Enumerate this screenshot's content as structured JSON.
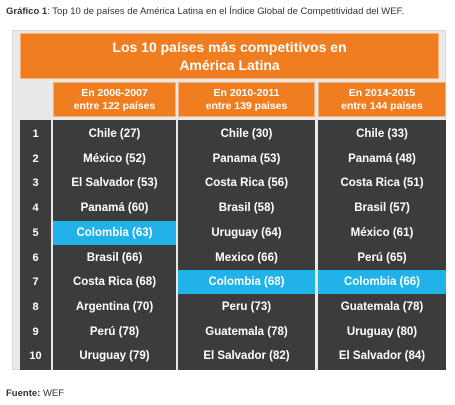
{
  "caption": {
    "prefix": "Gráfico 1",
    "text": ": Top 10 de países de América Latina en el Índice Global de Competitividad del WEF."
  },
  "banner": {
    "line1": "Los 10 países más competitivos en",
    "line2": "América Latina"
  },
  "source": {
    "prefix": "Fuente:",
    "text": " WEF"
  },
  "colors": {
    "orange": "#f07d1f",
    "dark": "#3c3c3c",
    "highlight": "#20b2e8",
    "frame": "#e9e9e9"
  },
  "chart_data": {
    "type": "table",
    "ranks": [
      "1",
      "2",
      "3",
      "4",
      "5",
      "6",
      "7",
      "8",
      "9",
      "10"
    ],
    "columns": [
      {
        "header_line1": "En 2006-2007",
        "header_line2": "entre 122 países",
        "highlight_index": 4,
        "entries": [
          "Chile (27)",
          "México (52)",
          "El Salvador  (53)",
          "Panamá (60)",
          "Colombia  (63)",
          "Brasil (66)",
          "Costa Rica (68)",
          "Argentina (70)",
          "Perú (78)",
          "Uruguay (79)"
        ]
      },
      {
        "header_line1": "En 2010-2011",
        "header_line2": "entre 139 países",
        "highlight_index": 6,
        "entries": [
          "Chile (30)",
          "Panama (53)",
          "Costa Rica (56)",
          "Brasil (58)",
          "Uruguay (64)",
          "Mexico (66)",
          "Colombia (68)",
          "Peru (73)",
          "Guatemala (78)",
          "El Salvador (82)"
        ]
      },
      {
        "header_line1": "En 2014-2015",
        "header_line2": "entre 144 países",
        "highlight_index": 6,
        "entries": [
          "Chile (33)",
          "Panamá (48)",
          "Costa Rica (51)",
          "Brasil (57)",
          "México (61)",
          "Perú (65)",
          "Colombia  (66)",
          "Guatemala (78)",
          "Uruguay (80)",
          "El Salvador (84)"
        ]
      }
    ]
  }
}
